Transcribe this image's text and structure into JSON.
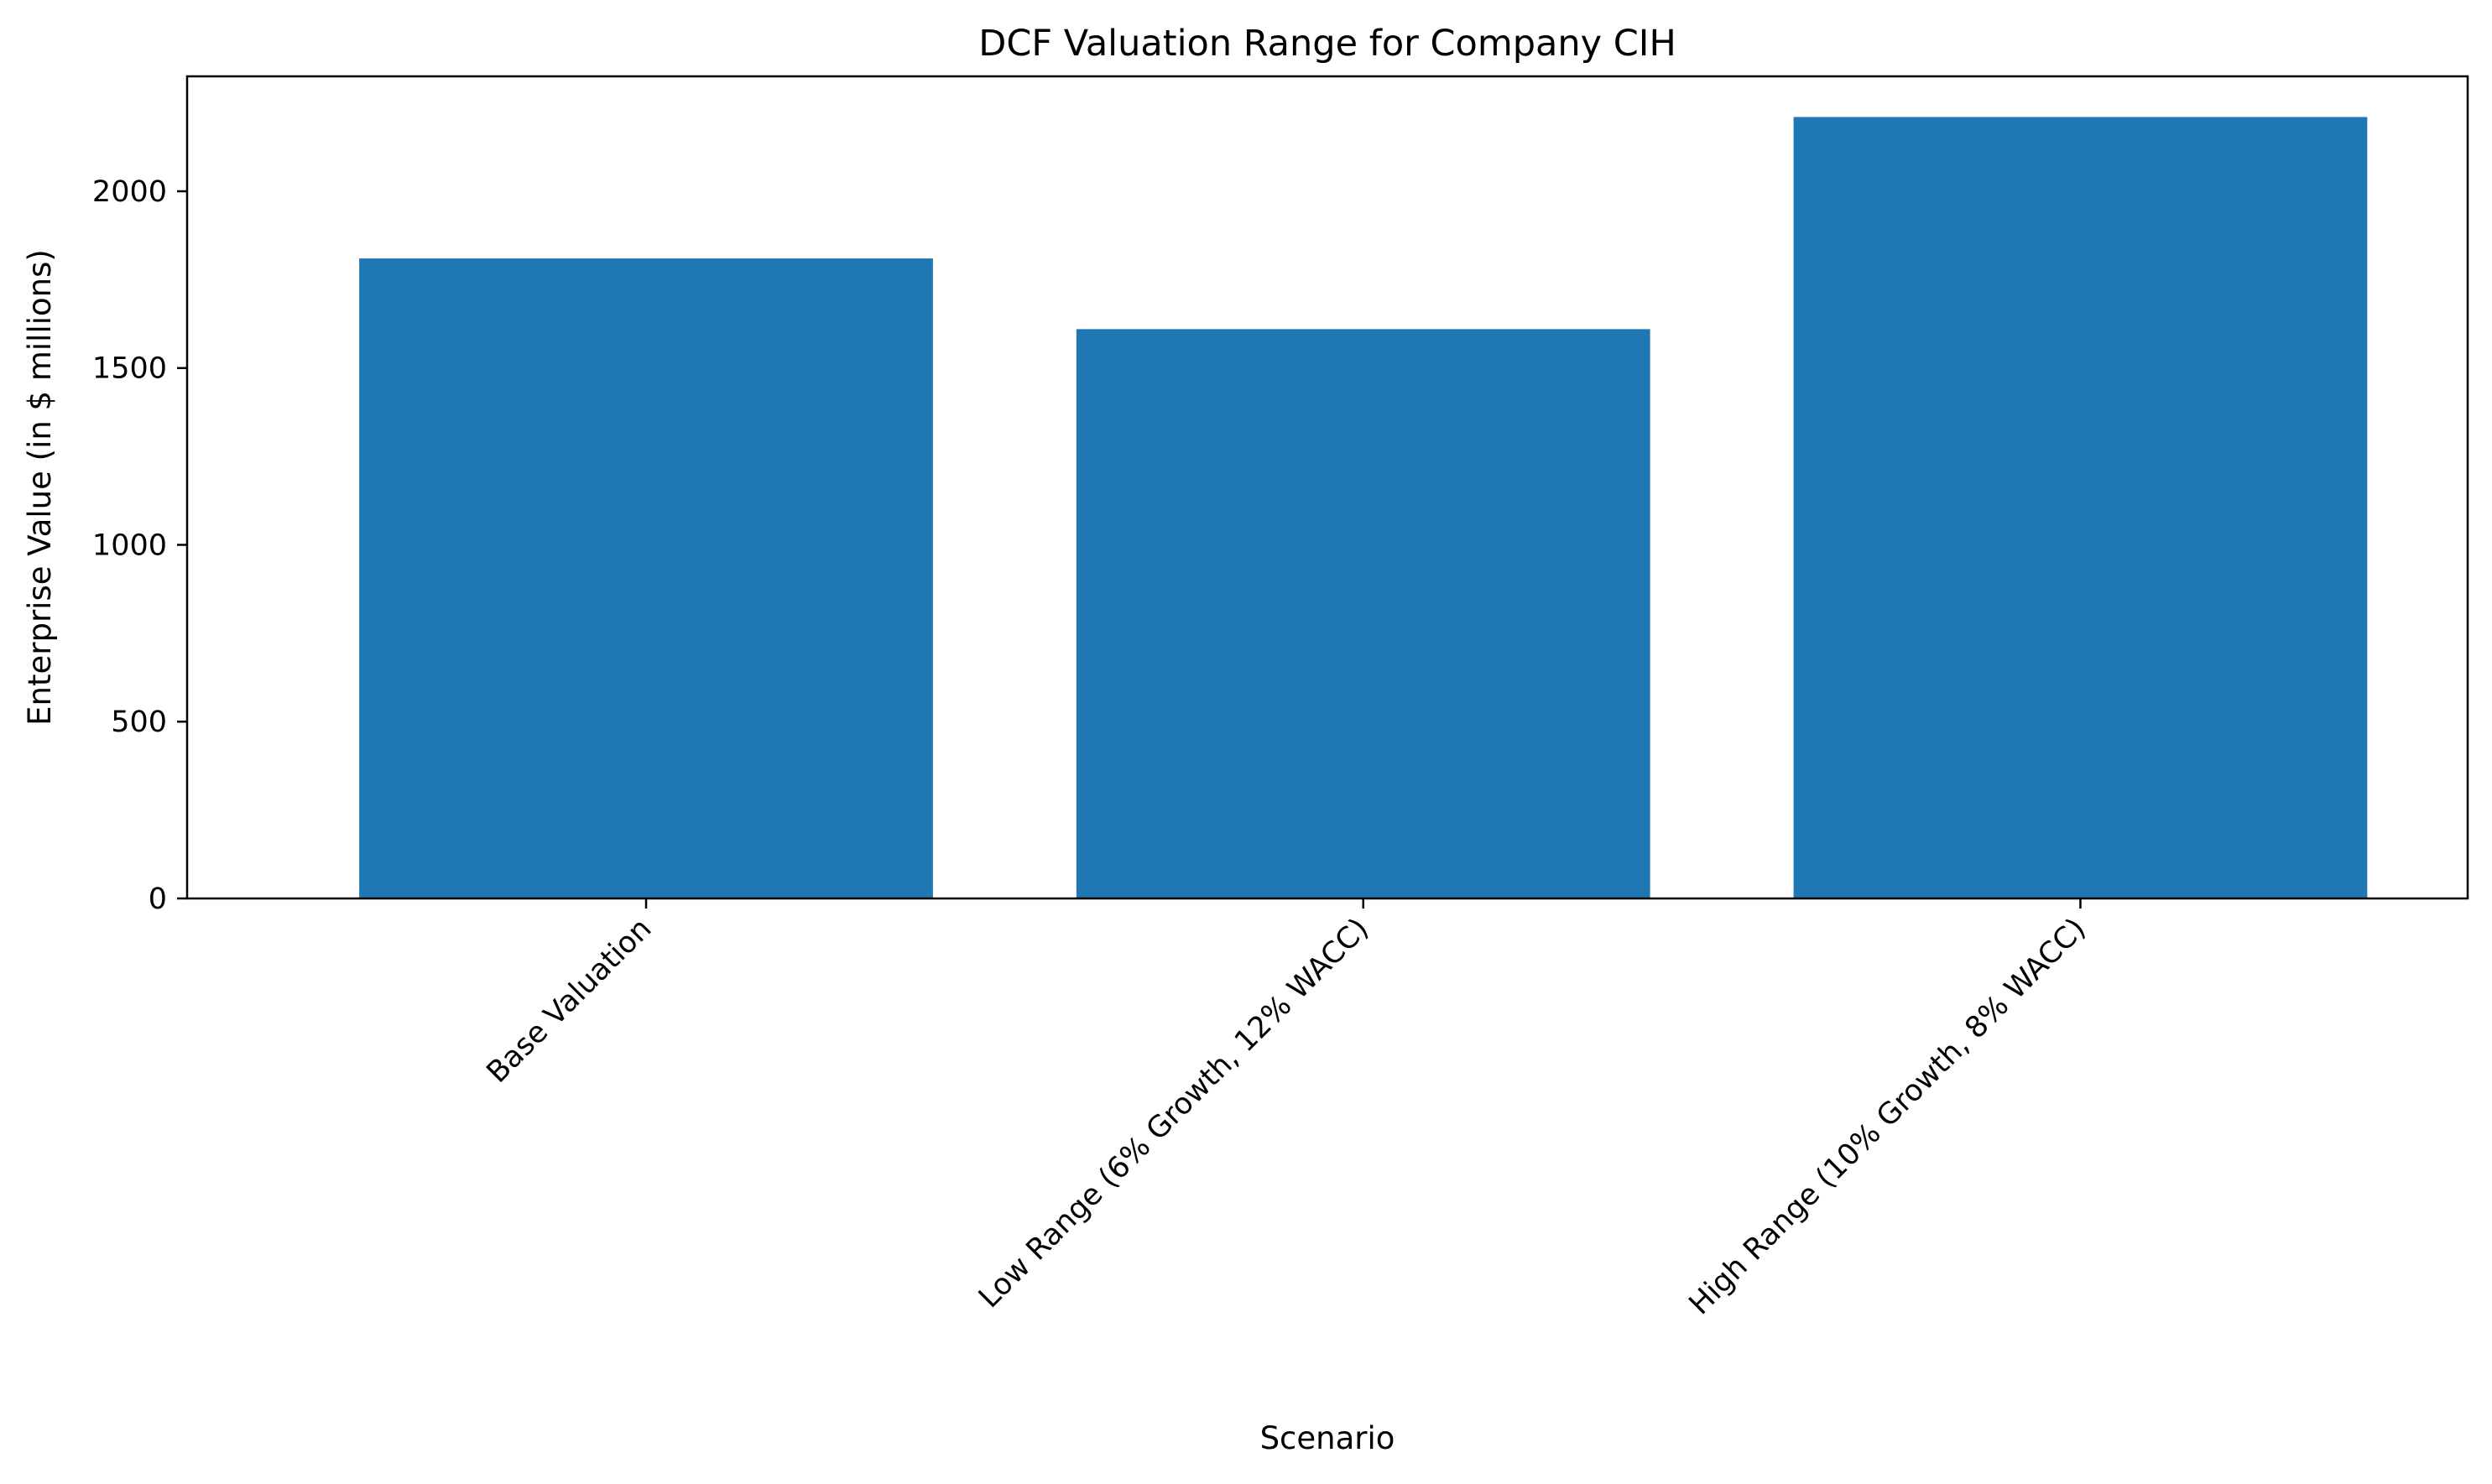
{
  "chart_data": {
    "type": "bar",
    "title": "DCF Valuation Range for Company CIH",
    "xlabel": "Scenario",
    "ylabel": "Enterprise Value (in $ millions)",
    "categories": [
      "Base Valuation",
      "Low Range (6% Growth, 12% WACC)",
      "High Range (10% Growth, 8% WACC)"
    ],
    "values": [
      1810,
      1610,
      2210
    ],
    "ylim": [
      0,
      2325
    ],
    "yticks": [
      0,
      500,
      1000,
      1500,
      2000
    ],
    "grid": false,
    "legend": "none",
    "bar_color": "#1f77b4",
    "axis_color": "#000000",
    "background": "#ffffff"
  }
}
